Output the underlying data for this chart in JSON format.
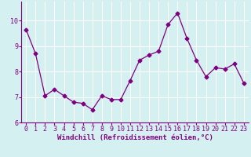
{
  "x": [
    0,
    1,
    2,
    3,
    4,
    5,
    6,
    7,
    8,
    9,
    10,
    11,
    12,
    13,
    14,
    15,
    16,
    17,
    18,
    19,
    20,
    21,
    22,
    23
  ],
  "y": [
    9.65,
    8.7,
    7.05,
    7.3,
    7.05,
    6.8,
    6.75,
    6.5,
    7.05,
    6.9,
    6.9,
    7.65,
    8.45,
    8.65,
    8.8,
    9.85,
    10.3,
    9.3,
    8.45,
    7.8,
    8.15,
    8.1,
    8.3,
    7.55
  ],
  "line_color": "#800080",
  "marker": "D",
  "marker_size": 2.5,
  "bg_color": "#d4f0f0",
  "grid_color": "#ffffff",
  "xlabel": "Windchill (Refroidissement éolien,°C)",
  "xlabel_color": "#800080",
  "tick_color": "#800080",
  "ylim": [
    6.0,
    10.75
  ],
  "yticks": [
    6,
    7,
    8,
    9,
    10
  ],
  "xlim": [
    -0.5,
    23.5
  ],
  "xticks": [
    0,
    1,
    2,
    3,
    4,
    5,
    6,
    7,
    8,
    9,
    10,
    11,
    12,
    13,
    14,
    15,
    16,
    17,
    18,
    19,
    20,
    21,
    22,
    23
  ],
  "tick_fontsize": 6,
  "xlabel_fontsize": 6.5
}
